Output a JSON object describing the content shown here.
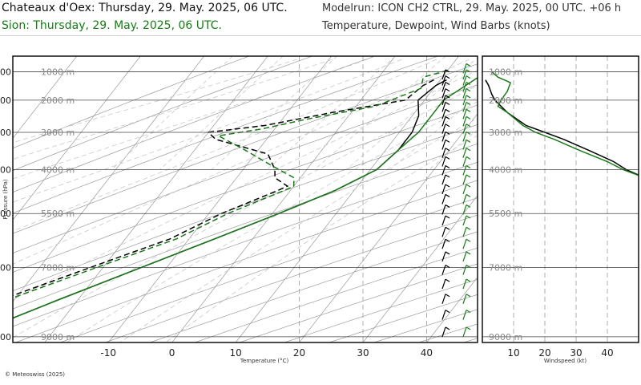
{
  "header": {
    "station_title": "Chateaux d'Oex: Thursday, 29. May. 2025, 06 UTC.",
    "compare_title": "Sion: Thursday, 29. May. 2025, 06 UTC.",
    "model_run": "Modelrun: ICON CH2 CTRL, 29. May. 2025, 00 UTC. +06 h",
    "subtitle": "Temperature, Dewpoint, Wind Barbs (knots)"
  },
  "footer": {
    "copyright": "© Meteoswiss (2025)"
  },
  "colors": {
    "station": "#000000",
    "compare": "#1a7a1a",
    "grid": "#9a9a9a",
    "grid_light": "#c8c8c8"
  },
  "chart_data": [
    {
      "type": "line",
      "subtype": "skew-T log-P sounding",
      "xlabel": "Temperature (°C)",
      "ylabel": "Pressure (hPa)",
      "x_ticks": [
        -10,
        0,
        10,
        20,
        30,
        40
      ],
      "xlim": [
        -25,
        48
      ],
      "y_ticks": [
        300,
        400,
        500,
        600,
        700,
        800,
        900
      ],
      "ylim": [
        960,
        293
      ],
      "y_scale": "log",
      "height_labels": [
        {
          "p": 300,
          "label": "9000 m"
        },
        {
          "p": 400,
          "label": "7000 m"
        },
        {
          "p": 500,
          "label": "5500 m"
        },
        {
          "p": 600,
          "label": "4000 m"
        },
        {
          "p": 700,
          "label": "3000 m"
        },
        {
          "p": 800,
          "label": "2000 m"
        },
        {
          "p": 900,
          "label": "1000 m"
        }
      ],
      "series": [
        {
          "color": "#000000",
          "dash": false,
          "points": [
            [
              870,
              11
            ],
            [
              850,
              10
            ],
            [
              800,
              9
            ],
            [
              750,
              11
            ],
            [
              700,
              12
            ],
            [
              650,
              12
            ],
            [
              600,
              11
            ],
            [
              550,
              7
            ],
            [
              500,
              1
            ],
            [
              450,
              -6
            ],
            [
              400,
              -14
            ],
            [
              350,
              -23
            ],
            [
              300,
              -33
            ]
          ]
        },
        {
          "color": "#000000",
          "dash": true,
          "points": [
            [
              870,
              9
            ],
            [
              850,
              8
            ],
            [
              800,
              7
            ],
            [
              760,
              -3
            ],
            [
              720,
              -12
            ],
            [
              700,
              -20
            ],
            [
              680,
              -18
            ],
            [
              640,
              -8
            ],
            [
              600,
              -5
            ],
            [
              580,
              -4
            ],
            [
              560,
              -1
            ],
            [
              550,
              -2
            ],
            [
              500,
              -8
            ],
            [
              450,
              -13
            ],
            [
              400,
              -22
            ],
            [
              350,
              -32
            ],
            [
              300,
              -42
            ]
          ]
        },
        {
          "color": "#1a7a1a",
          "dash": false,
          "points": [
            [
              890,
              16
            ],
            [
              860,
              15
            ],
            [
              800,
              13
            ],
            [
              750,
              13
            ],
            [
              700,
              13
            ],
            [
              650,
              12
            ],
            [
              600,
              11
            ],
            [
              550,
              7
            ],
            [
              500,
              1
            ],
            [
              450,
              -6
            ],
            [
              400,
              -14
            ],
            [
              350,
              -23
            ],
            [
              300,
              -33
            ]
          ]
        },
        {
          "color": "#1a7a1a",
          "dash": true,
          "points": [
            [
              905,
              10
            ],
            [
              880,
              7
            ],
            [
              840,
              8
            ],
            [
              780,
              3
            ],
            [
              740,
              -6
            ],
            [
              710,
              -12
            ],
            [
              690,
              -18
            ],
            [
              650,
              -12
            ],
            [
              610,
              -6
            ],
            [
              580,
              -1
            ],
            [
              560,
              0
            ],
            [
              550,
              -1
            ],
            [
              500,
              -7
            ],
            [
              450,
              -12
            ],
            [
              400,
              -21
            ],
            [
              350,
              -31
            ],
            [
              300,
              -41
            ]
          ]
        }
      ]
    },
    {
      "type": "line",
      "subtype": "wind speed profile",
      "xlabel": "Windspeed (kt)",
      "x_ticks": [
        10,
        20,
        30,
        40
      ],
      "xlim": [
        0,
        50
      ],
      "y_scale": "log",
      "series": [
        {
          "color": "#000000",
          "points": [
            [
              870,
              1
            ],
            [
              850,
              2
            ],
            [
              820,
              3
            ],
            [
              800,
              4
            ],
            [
              760,
              8
            ],
            [
              720,
              14
            ],
            [
              700,
              20
            ],
            [
              680,
              26
            ],
            [
              650,
              34
            ],
            [
              620,
              42
            ],
            [
              600,
              46
            ],
            [
              580,
              52
            ]
          ]
        },
        {
          "color": "#1a7a1a",
          "points": [
            [
              900,
              3
            ],
            [
              880,
              5
            ],
            [
              860,
              9
            ],
            [
              830,
              8
            ],
            [
              800,
              6
            ],
            [
              780,
              5
            ],
            [
              760,
              8
            ],
            [
              720,
              13
            ],
            [
              700,
              17
            ],
            [
              680,
              23
            ],
            [
              650,
              31
            ],
            [
              620,
              40
            ],
            [
              600,
              45
            ],
            [
              580,
              52
            ]
          ]
        }
      ]
    }
  ]
}
